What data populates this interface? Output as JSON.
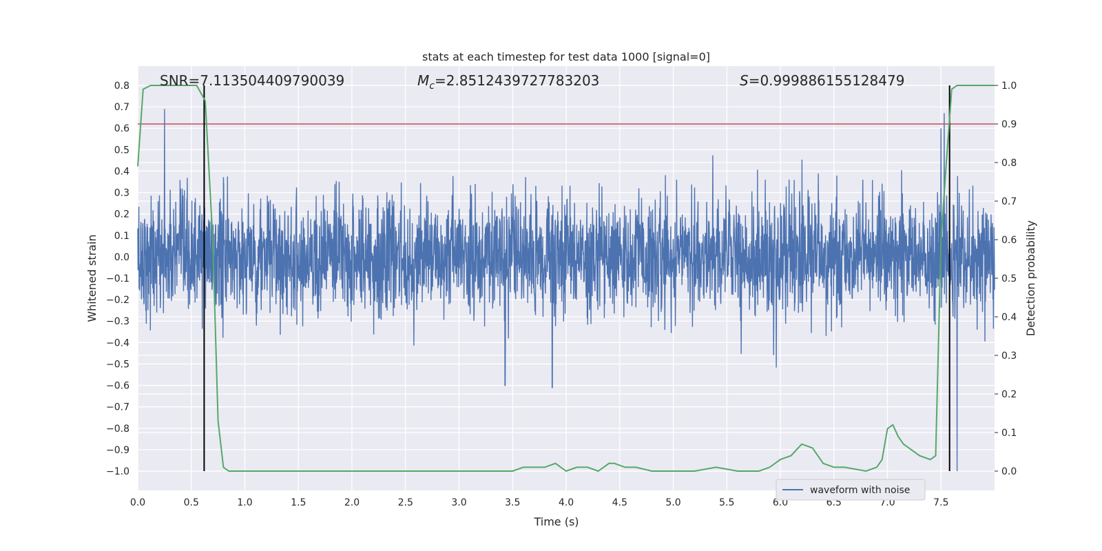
{
  "chart_data": {
    "type": "line",
    "title": "stats at each timestep for test data 1000 [signal=0]",
    "xlabel": "Time (s)",
    "ylabel_left": "Whitened strain",
    "ylabel_right": "Detection probability",
    "xlim": [
      0,
      8.0
    ],
    "ylim_left": [
      -1.09,
      0.89
    ],
    "ylim_right": [
      -0.05,
      1.05
    ],
    "x_ticks": [
      "0.0",
      "0.5",
      "1.0",
      "1.5",
      "2.0",
      "2.5",
      "3.0",
      "3.5",
      "4.0",
      "4.5",
      "5.0",
      "5.5",
      "6.0",
      "6.5",
      "7.0",
      "7.5"
    ],
    "y_ticks_left": [
      "−1.0",
      "−0.9",
      "−0.8",
      "−0.7",
      "−0.6",
      "−0.5",
      "−0.4",
      "−0.3",
      "−0.2",
      "−0.1",
      "0.0",
      "0.1",
      "0.2",
      "0.3",
      "0.4",
      "0.5",
      "0.6",
      "0.7",
      "0.8"
    ],
    "y_ticks_right": [
      "0.0",
      "0.1",
      "0.2",
      "0.3",
      "0.4",
      "0.5",
      "0.6",
      "0.7",
      "0.8",
      "0.9",
      "1.0"
    ],
    "grid": true,
    "legend_position": "lower-right",
    "annotations": {
      "snr": "SNR=7.113504409790039",
      "mc_symbol": "M",
      "mc_sub": "c",
      "mc_value": "=2.8512439727783203",
      "s_symbol": "S",
      "s_value": "=0.999886155128479"
    },
    "series": [
      {
        "name": "waveform with noise",
        "axis": "left",
        "color": "#4c72b0",
        "description_stats": {
          "typical_amplitude": 0.25,
          "max": 0.8,
          "min": -1.0
        },
        "peaks": [
          [
            0.25,
            0.69
          ],
          [
            0.62,
            0.75
          ],
          [
            3.87,
            -0.61
          ],
          [
            3.43,
            -0.6
          ],
          [
            7.5,
            0.6
          ],
          [
            7.65,
            -1.0
          ],
          [
            7.53,
            0.67
          ]
        ]
      },
      {
        "name": "detection probability",
        "axis": "right",
        "color": "#55a868",
        "x": [
          0.0,
          0.05,
          0.12,
          0.2,
          0.3,
          0.4,
          0.5,
          0.55,
          0.63,
          0.7,
          0.75,
          0.8,
          0.85,
          0.9,
          1.0,
          1.5,
          2.0,
          2.5,
          3.0,
          3.5,
          3.6,
          3.8,
          3.9,
          4.0,
          4.1,
          4.2,
          4.3,
          4.4,
          4.45,
          4.55,
          4.65,
          4.8,
          5.0,
          5.2,
          5.4,
          5.6,
          5.8,
          5.9,
          6.0,
          6.1,
          6.2,
          6.3,
          6.4,
          6.5,
          6.6,
          6.8,
          6.9,
          6.95,
          7.0,
          7.05,
          7.1,
          7.15,
          7.2,
          7.3,
          7.4,
          7.45,
          7.5,
          7.55,
          7.6,
          7.65,
          7.7,
          8.0
        ],
        "y": [
          0.79,
          0.99,
          1.0,
          1.0,
          1.0,
          1.0,
          1.0,
          1.0,
          0.96,
          0.6,
          0.13,
          0.01,
          0.0,
          0.0,
          0.0,
          0.0,
          0.0,
          0.0,
          0.0,
          0.0,
          0.01,
          0.01,
          0.02,
          0.0,
          0.01,
          0.01,
          0.0,
          0.02,
          0.02,
          0.01,
          0.01,
          0.0,
          0.0,
          0.0,
          0.01,
          0.0,
          0.0,
          0.01,
          0.03,
          0.04,
          0.07,
          0.06,
          0.02,
          0.01,
          0.01,
          0.0,
          0.01,
          0.03,
          0.11,
          0.12,
          0.09,
          0.07,
          0.06,
          0.04,
          0.03,
          0.04,
          0.6,
          0.8,
          0.99,
          1.0,
          1.0,
          1.0
        ]
      }
    ],
    "threshold_line": {
      "axis": "right",
      "value": 0.9,
      "color": "#c44e52"
    },
    "vertical_markers": [
      0.62,
      7.58
    ]
  }
}
